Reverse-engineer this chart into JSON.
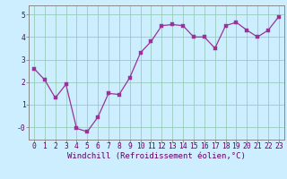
{
  "x": [
    0,
    1,
    2,
    3,
    4,
    5,
    6,
    7,
    8,
    9,
    10,
    11,
    12,
    13,
    14,
    15,
    16,
    17,
    18,
    19,
    20,
    21,
    22,
    23
  ],
  "y": [
    2.6,
    2.1,
    1.3,
    1.9,
    -0.05,
    -0.2,
    0.45,
    1.5,
    1.45,
    2.2,
    3.3,
    3.8,
    4.5,
    4.55,
    4.5,
    4.0,
    4.0,
    3.5,
    4.5,
    4.65,
    4.3,
    4.0,
    4.3,
    4.9
  ],
  "line_color": "#993399",
  "marker_color": "#993399",
  "bg_color": "#cceeff",
  "grid_color": "#99ccbb",
  "spine_color": "#888888",
  "text_color": "#660066",
  "xlabel": "Windchill (Refroidissement éolien,°C)",
  "ytick_labels": [
    "-0",
    "1",
    "2",
    "3",
    "4",
    "5"
  ],
  "yticks": [
    0,
    1,
    2,
    3,
    4,
    5
  ],
  "ylim": [
    -0.55,
    5.4
  ],
  "xlim": [
    -0.5,
    23.5
  ],
  "xlabel_fontsize": 6.5,
  "tick_fontsize": 5.8,
  "linewidth": 0.9,
  "markersize": 2.2
}
